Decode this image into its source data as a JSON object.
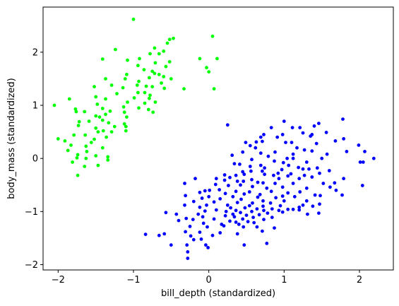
{
  "chart_data": {
    "type": "scatter",
    "xlabel": "bill_depth (standardized)",
    "ylabel": "body_mass (standardized)",
    "xlim": [
      -2.2,
      2.45
    ],
    "ylim": [
      -2.1,
      2.85
    ],
    "xticks": [
      -2,
      -1,
      0,
      1,
      2
    ],
    "yticks": [
      -2,
      -1,
      0,
      1,
      2
    ],
    "grid": false,
    "legend": "none",
    "series": [
      {
        "color": "#00ff00",
        "points": [
          [
            -1.0,
            2.62
          ],
          [
            0.05,
            2.3
          ],
          [
            -0.47,
            2.26
          ],
          [
            -0.52,
            2.24
          ],
          [
            -0.55,
            2.17
          ],
          [
            -1.24,
            2.05
          ],
          [
            -0.72,
            2.08
          ],
          [
            -0.6,
            2.02
          ],
          [
            -1.41,
            1.87
          ],
          [
            -0.78,
            1.97
          ],
          [
            -0.66,
            1.97
          ],
          [
            -0.12,
            1.88
          ],
          [
            0.11,
            1.88
          ],
          [
            -0.92,
            1.88
          ],
          [
            -1.08,
            1.85
          ],
          [
            -0.52,
            1.82
          ],
          [
            -0.71,
            1.8
          ],
          [
            -0.94,
            1.75
          ],
          [
            -0.57,
            1.73
          ],
          [
            -0.86,
            1.67
          ],
          [
            -0.75,
            1.64
          ],
          [
            -0.03,
            1.71
          ],
          [
            -0.72,
            1.6
          ],
          [
            0.0,
            1.63
          ],
          [
            -1.09,
            1.58
          ],
          [
            -0.66,
            1.58
          ],
          [
            -1.11,
            1.5
          ],
          [
            -0.5,
            1.5
          ],
          [
            -0.79,
            1.52
          ],
          [
            -0.6,
            1.54
          ],
          [
            -0.93,
            1.45
          ],
          [
            -1.37,
            1.5
          ],
          [
            -0.63,
            1.42
          ],
          [
            -0.95,
            1.38
          ],
          [
            -0.83,
            1.36
          ],
          [
            -1.29,
            1.38
          ],
          [
            -0.75,
            1.35
          ],
          [
            -0.59,
            1.32
          ],
          [
            -0.33,
            1.31
          ],
          [
            0.07,
            1.31
          ],
          [
            -1.14,
            1.33
          ],
          [
            -1.52,
            1.35
          ],
          [
            -1.22,
            1.22
          ],
          [
            -0.94,
            1.24
          ],
          [
            -1.5,
            1.16
          ],
          [
            -0.85,
            1.24
          ],
          [
            -0.78,
            1.19
          ],
          [
            -0.99,
            1.14
          ],
          [
            -0.79,
            1.13
          ],
          [
            -1.37,
            1.12
          ],
          [
            -1.85,
            1.12
          ],
          [
            -1.48,
            1.02
          ],
          [
            -0.71,
            1.06
          ],
          [
            -0.85,
            1.04
          ],
          [
            -1.08,
            1.06
          ],
          [
            -2.05,
            1.0
          ],
          [
            -1.13,
            0.97
          ],
          [
            -0.93,
            0.95
          ],
          [
            -1.41,
            0.94
          ],
          [
            -0.8,
            0.92
          ],
          [
            -1.77,
            0.93
          ],
          [
            -1.65,
            0.88
          ],
          [
            -1.76,
            0.88
          ],
          [
            -1.31,
            0.89
          ],
          [
            -1.12,
            0.87
          ],
          [
            -0.74,
            0.87
          ],
          [
            -1.37,
            0.83
          ],
          [
            -1.5,
            0.8
          ],
          [
            -1.45,
            0.78
          ],
          [
            -1.09,
            0.78
          ],
          [
            -1.41,
            0.72
          ],
          [
            -1.72,
            0.69
          ],
          [
            -1.59,
            0.7
          ],
          [
            -1.33,
            0.67
          ],
          [
            -1.12,
            0.65
          ],
          [
            -1.73,
            0.62
          ],
          [
            -1.5,
            0.57
          ],
          [
            -1.25,
            0.6
          ],
          [
            -1.1,
            0.6
          ],
          [
            -1.4,
            0.52
          ],
          [
            -1.47,
            0.5
          ],
          [
            -1.29,
            0.5
          ],
          [
            -1.1,
            0.52
          ],
          [
            -1.64,
            0.44
          ],
          [
            -1.79,
            0.44
          ],
          [
            -1.52,
            0.36
          ],
          [
            -2.0,
            0.37
          ],
          [
            -1.91,
            0.33
          ],
          [
            -1.36,
            0.4
          ],
          [
            -1.56,
            0.3
          ],
          [
            -1.83,
            0.25
          ],
          [
            -1.63,
            0.23
          ],
          [
            -1.41,
            0.2
          ],
          [
            -1.87,
            0.15
          ],
          [
            -1.62,
            0.13
          ],
          [
            -1.74,
            0.07
          ],
          [
            -1.5,
            0.05
          ],
          [
            -1.63,
            0.0
          ],
          [
            -1.75,
            0.01
          ],
          [
            -1.34,
            0.03
          ],
          [
            -1.34,
            -0.03
          ],
          [
            -1.81,
            -0.07
          ],
          [
            -1.47,
            -0.13
          ],
          [
            -1.65,
            -0.15
          ],
          [
            -1.74,
            -0.32
          ]
        ]
      },
      {
        "color": "#0000ff",
        "points": [
          [
            1.0,
            0.7
          ],
          [
            1.78,
            0.74
          ],
          [
            0.25,
            0.63
          ],
          [
            0.83,
            0.58
          ],
          [
            1.46,
            0.66
          ],
          [
            1.4,
            0.61
          ],
          [
            1.11,
            0.58
          ],
          [
            1.21,
            0.58
          ],
          [
            1.56,
            0.49
          ],
          [
            0.98,
            0.45
          ],
          [
            1.25,
            0.48
          ],
          [
            0.73,
            0.45
          ],
          [
            0.69,
            0.4
          ],
          [
            0.91,
            0.4
          ],
          [
            1.35,
            0.42
          ],
          [
            1.37,
            0.45
          ],
          [
            1.79,
            0.37
          ],
          [
            0.49,
            0.3
          ],
          [
            0.63,
            0.31
          ],
          [
            0.71,
            0.32
          ],
          [
            1.02,
            0.3
          ],
          [
            1.1,
            0.3
          ],
          [
            1.43,
            0.28
          ],
          [
            1.68,
            0.33
          ],
          [
            1.99,
            0.25
          ],
          [
            0.55,
            0.24
          ],
          [
            0.62,
            0.2
          ],
          [
            1.17,
            0.2
          ],
          [
            1.27,
            0.16
          ],
          [
            1.37,
            0.14
          ],
          [
            1.83,
            0.13
          ],
          [
            0.45,
            0.12
          ],
          [
            0.69,
            0.1
          ],
          [
            0.88,
            0.12
          ],
          [
            1.12,
            0.08
          ],
          [
            1.57,
            0.08
          ],
          [
            2.07,
            0.13
          ],
          [
            0.31,
            0.06
          ],
          [
            0.79,
            0.04
          ],
          [
            1.04,
            0.0
          ],
          [
            1.12,
            0.0
          ],
          [
            1.5,
            0.0
          ],
          [
            2.19,
            0.0
          ],
          [
            0.57,
            -0.02
          ],
          [
            0.87,
            -0.05
          ],
          [
            0.99,
            -0.08
          ],
          [
            1.3,
            -0.07
          ],
          [
            2.01,
            -0.07
          ],
          [
            2.05,
            -0.07
          ],
          [
            0.34,
            -0.1
          ],
          [
            0.41,
            -0.11
          ],
          [
            0.69,
            -0.13
          ],
          [
            1.06,
            -0.13
          ],
          [
            1.25,
            -0.2
          ],
          [
            1.33,
            -0.2
          ],
          [
            0.55,
            -0.15
          ],
          [
            0.74,
            -0.18
          ],
          [
            0.97,
            -0.21
          ],
          [
            1.19,
            -0.17
          ],
          [
            1.44,
            -0.18
          ],
          [
            0.45,
            -0.25
          ],
          [
            0.56,
            -0.24
          ],
          [
            0.71,
            -0.24
          ],
          [
            0.92,
            -0.28
          ],
          [
            1.09,
            -0.29
          ],
          [
            1.47,
            -0.28
          ],
          [
            1.6,
            -0.23
          ],
          [
            0.21,
            -0.31
          ],
          [
            0.36,
            -0.32
          ],
          [
            0.47,
            -0.3
          ],
          [
            0.74,
            -0.3
          ],
          [
            0.86,
            -0.32
          ],
          [
            1.05,
            -0.33
          ],
          [
            1.27,
            -0.32
          ],
          [
            1.37,
            -0.35
          ],
          [
            1.79,
            -0.38
          ],
          [
            0.28,
            -0.36
          ],
          [
            0.57,
            -0.4
          ],
          [
            0.93,
            -0.38
          ],
          [
            1.2,
            -0.38
          ],
          [
            0.1,
            -0.38
          ],
          [
            -0.18,
            -0.38
          ],
          [
            0.21,
            -0.41
          ],
          [
            0.38,
            -0.43
          ],
          [
            0.46,
            -0.43
          ],
          [
            0.65,
            -0.45
          ],
          [
            0.72,
            -0.46
          ],
          [
            0.88,
            -0.47
          ],
          [
            1.12,
            -0.47
          ],
          [
            1.52,
            -0.47
          ],
          [
            1.67,
            -0.46
          ],
          [
            2.04,
            -0.51
          ],
          [
            -0.32,
            -0.47
          ],
          [
            0.09,
            -0.49
          ],
          [
            0.26,
            -0.51
          ],
          [
            0.42,
            -0.5
          ],
          [
            0.58,
            -0.53
          ],
          [
            0.77,
            -0.56
          ],
          [
            0.98,
            -0.54
          ],
          [
            1.3,
            -0.56
          ],
          [
            1.61,
            -0.54
          ],
          [
            1.69,
            -0.6
          ],
          [
            -0.05,
            -0.61
          ],
          [
            0.01,
            -0.6
          ],
          [
            0.14,
            -0.59
          ],
          [
            0.36,
            -0.62
          ],
          [
            0.54,
            -0.63
          ],
          [
            0.83,
            -0.62
          ],
          [
            1.05,
            -0.65
          ],
          [
            1.21,
            -0.63
          ],
          [
            -0.12,
            -0.64
          ],
          [
            0.22,
            -0.66
          ],
          [
            0.47,
            -0.67
          ],
          [
            0.68,
            -0.68
          ],
          [
            0.98,
            -0.71
          ],
          [
            1.41,
            -0.69
          ],
          [
            1.48,
            -0.7
          ],
          [
            1.77,
            -0.69
          ],
          [
            -0.31,
            -0.7
          ],
          [
            0.0,
            -0.72
          ],
          [
            0.32,
            -0.72
          ],
          [
            0.65,
            -0.73
          ],
          [
            0.89,
            -0.74
          ],
          [
            1.14,
            -0.72
          ],
          [
            -0.09,
            -0.75
          ],
          [
            0.15,
            -0.76
          ],
          [
            0.43,
            -0.77
          ],
          [
            0.72,
            -0.8
          ],
          [
            1.0,
            -0.8
          ],
          [
            1.3,
            -0.8
          ],
          [
            -0.2,
            -0.81
          ],
          [
            0.07,
            -0.82
          ],
          [
            0.38,
            -0.83
          ],
          [
            0.58,
            -0.84
          ],
          [
            0.82,
            -0.84
          ],
          [
            1.25,
            -0.88
          ],
          [
            1.47,
            -0.86
          ],
          [
            -0.32,
            -0.88
          ],
          [
            -0.03,
            -0.88
          ],
          [
            0.25,
            -0.88
          ],
          [
            0.54,
            -0.89
          ],
          [
            0.72,
            -0.9
          ],
          [
            0.95,
            -0.89
          ],
          [
            1.2,
            -0.92
          ],
          [
            1.38,
            -0.9
          ],
          [
            -0.12,
            -0.92
          ],
          [
            0.29,
            -0.93
          ],
          [
            0.48,
            -0.93
          ],
          [
            0.64,
            -0.95
          ],
          [
            0.84,
            -0.95
          ],
          [
            1.05,
            -0.96
          ],
          [
            1.2,
            -0.97
          ],
          [
            0.1,
            -0.97
          ],
          [
            0.36,
            -0.98
          ],
          [
            0.57,
            -1.0
          ],
          [
            0.73,
            -0.98
          ],
          [
            0.93,
            -0.98
          ],
          [
            1.12,
            -0.96
          ],
          [
            -0.05,
            -0.99
          ],
          [
            0.23,
            -1.0
          ],
          [
            0.42,
            -1.02
          ],
          [
            0.78,
            -1.03
          ],
          [
            0.98,
            -1.01
          ],
          [
            -0.57,
            -1.02
          ],
          [
            -0.43,
            -1.05
          ],
          [
            -0.14,
            -1.05
          ],
          [
            0.32,
            -1.05
          ],
          [
            0.5,
            -1.07
          ],
          [
            0.67,
            -1.06
          ],
          [
            1.31,
            -1.05
          ],
          [
            1.46,
            -1.03
          ],
          [
            -0.08,
            -1.1
          ],
          [
            0.22,
            -1.08
          ],
          [
            0.34,
            -1.1
          ],
          [
            0.59,
            -1.11
          ],
          [
            0.84,
            -1.11
          ],
          [
            -0.3,
            -1.13
          ],
          [
            -0.21,
            -1.15
          ],
          [
            0.07,
            -1.14
          ],
          [
            0.45,
            -1.14
          ],
          [
            0.73,
            -1.15
          ],
          [
            -0.4,
            -1.17
          ],
          [
            0.28,
            -1.18
          ],
          [
            0.52,
            -1.19
          ],
          [
            0.36,
            -1.2
          ],
          [
            0.6,
            -1.21
          ],
          [
            -0.07,
            -1.22
          ],
          [
            0.17,
            -1.24
          ],
          [
            0.4,
            -1.24
          ],
          [
            0.2,
            -1.27
          ],
          [
            -0.25,
            -1.28
          ],
          [
            -0.02,
            -1.29
          ],
          [
            0.46,
            -1.29
          ],
          [
            0.64,
            -1.29
          ],
          [
            0.87,
            -1.31
          ],
          [
            -0.31,
            -1.38
          ],
          [
            -0.12,
            -1.39
          ],
          [
            0.15,
            -1.4
          ],
          [
            0.38,
            -1.42
          ],
          [
            0.71,
            -1.37
          ],
          [
            -0.59,
            -1.42
          ],
          [
            -0.66,
            -1.45
          ],
          [
            -0.84,
            -1.43
          ],
          [
            -0.24,
            -1.46
          ],
          [
            0.05,
            -1.45
          ],
          [
            -0.1,
            -1.52
          ],
          [
            -0.2,
            -1.53
          ],
          [
            -0.04,
            -1.63
          ],
          [
            -0.5,
            -1.63
          ],
          [
            0.47,
            -1.63
          ],
          [
            0.77,
            -1.6
          ],
          [
            -0.29,
            -1.63
          ],
          [
            -0.01,
            -1.68
          ],
          [
            -0.28,
            -1.76
          ],
          [
            -0.28,
            -1.88
          ]
        ]
      }
    ]
  }
}
